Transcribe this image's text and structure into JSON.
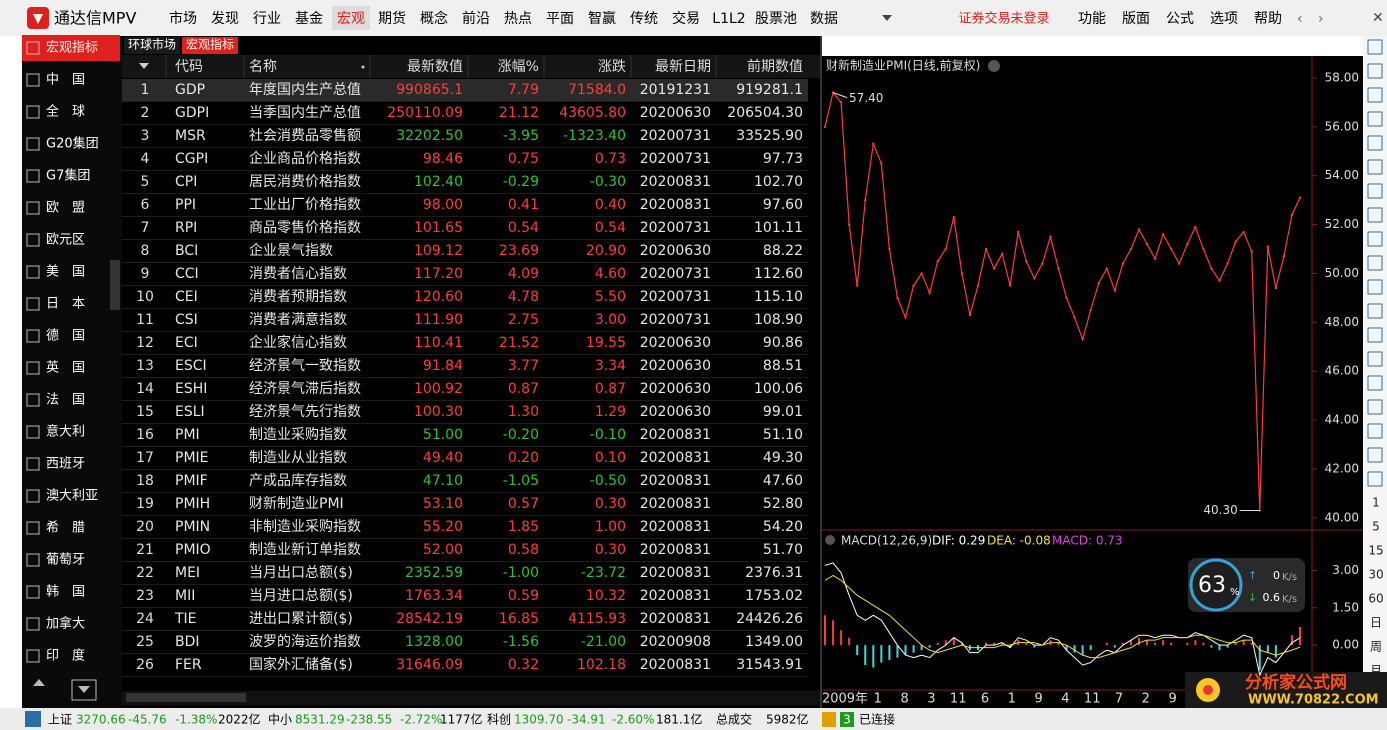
{
  "app": {
    "title": "通达信MPV",
    "menu": [
      "市场",
      "发现",
      "行业",
      "基金",
      "宏观",
      "期货",
      "概念",
      "前沿",
      "热点",
      "平面",
      "智赢",
      "传统",
      "交易",
      "L1L2",
      "股票池",
      "数据"
    ],
    "active_menu": 4,
    "login_status": "证券交易未登录",
    "right_menu": [
      "功能",
      "版面",
      "公式",
      "选项",
      "帮助"
    ]
  },
  "sidebar": {
    "items": [
      "宏观指标",
      "中　国",
      "全　球",
      "G20集团",
      "G7集团",
      "欧　盟",
      "欧元区",
      "美　国",
      "日　本",
      "德　国",
      "英　国",
      "法　国",
      "意大利",
      "西班牙",
      "澳大利亚",
      "希　腊",
      "葡萄牙",
      "韩　国",
      "加拿大",
      "印　度"
    ],
    "active": 0
  },
  "tabs": {
    "items": [
      "环球市场",
      "宏观指标"
    ],
    "active": 1
  },
  "table": {
    "columns": [
      "代码",
      "名称",
      "最新数值",
      "涨幅%",
      "涨跌",
      "最新日期",
      "前期数值"
    ],
    "selected": 0,
    "rows": [
      [
        "1",
        "GDP",
        "年度国内生产总值",
        "990865.1",
        "7.79",
        "71584.0",
        "20191231",
        "919281.1"
      ],
      [
        "2",
        "GDPI",
        "当季国内生产总值",
        "250110.09",
        "21.12",
        "43605.80",
        "20200630",
        "206504.30"
      ],
      [
        "3",
        "MSR",
        "社会消费品零售额",
        "32202.50",
        "-3.95",
        "-1323.40",
        "20200731",
        "33525.90"
      ],
      [
        "4",
        "CGPI",
        "企业商品价格指数",
        "98.46",
        "0.75",
        "0.73",
        "20200731",
        "97.73"
      ],
      [
        "5",
        "CPI",
        "居民消费价格指数",
        "102.40",
        "-0.29",
        "-0.30",
        "20200831",
        "102.70"
      ],
      [
        "6",
        "PPI",
        "工业出厂价格指数",
        "98.00",
        "0.41",
        "0.40",
        "20200831",
        "97.60"
      ],
      [
        "7",
        "RPI",
        "商品零售价格指数",
        "101.65",
        "0.54",
        "0.54",
        "20200731",
        "101.11"
      ],
      [
        "8",
        "BCI",
        "企业景气指数",
        "109.12",
        "23.69",
        "20.90",
        "20200630",
        "88.22"
      ],
      [
        "9",
        "CCI",
        "消费者信心指数",
        "117.20",
        "4.09",
        "4.60",
        "20200731",
        "112.60"
      ],
      [
        "10",
        "CEI",
        "消费者预期指数",
        "120.60",
        "4.78",
        "5.50",
        "20200731",
        "115.10"
      ],
      [
        "11",
        "CSI",
        "消费者满意指数",
        "111.90",
        "2.75",
        "3.00",
        "20200731",
        "108.90"
      ],
      [
        "12",
        "ECI",
        "企业家信心指数",
        "110.41",
        "21.52",
        "19.55",
        "20200630",
        "90.86"
      ],
      [
        "13",
        "ESCI",
        "经济景气一致指数",
        "91.84",
        "3.77",
        "3.34",
        "20200630",
        "88.51"
      ],
      [
        "14",
        "ESHI",
        "经济景气滞后指数",
        "100.92",
        "0.87",
        "0.87",
        "20200630",
        "100.06"
      ],
      [
        "15",
        "ESLI",
        "经济景气先行指数",
        "100.30",
        "1.30",
        "1.29",
        "20200630",
        "99.01"
      ],
      [
        "16",
        "PMI",
        "制造业采购指数",
        "51.00",
        "-0.20",
        "-0.10",
        "20200831",
        "51.10"
      ],
      [
        "17",
        "PMIE",
        "制造业从业指数",
        "49.40",
        "0.20",
        "0.10",
        "20200831",
        "49.30"
      ],
      [
        "18",
        "PMIF",
        "产成品库存指数",
        "47.10",
        "-1.05",
        "-0.50",
        "20200831",
        "47.60"
      ],
      [
        "19",
        "PMIH",
        "财新制造业PMI",
        "53.10",
        "0.57",
        "0.30",
        "20200831",
        "52.80"
      ],
      [
        "20",
        "PMIN",
        "非制造业采购指数",
        "55.20",
        "1.85",
        "1.00",
        "20200831",
        "54.20"
      ],
      [
        "21",
        "PMIO",
        "制造业新订单指数",
        "52.00",
        "0.58",
        "0.30",
        "20200831",
        "51.70"
      ],
      [
        "22",
        "MEI",
        "当月出口总额($)",
        "2352.59",
        "-1.00",
        "-23.72",
        "20200831",
        "2376.31"
      ],
      [
        "23",
        "MII",
        "当月进口总额($)",
        "1763.34",
        "0.59",
        "10.32",
        "20200831",
        "1753.02"
      ],
      [
        "24",
        "TIE",
        "进出口累计额($)",
        "28542.19",
        "16.85",
        "4115.93",
        "20200831",
        "24426.26"
      ],
      [
        "25",
        "BDI",
        "波罗的海运价指数",
        "1328.00",
        "-1.56",
        "-21.00",
        "20200908",
        "1349.00"
      ],
      [
        "26",
        "FER",
        "国家外汇储备($)",
        "31646.09",
        "0.32",
        "102.18",
        "20200831",
        "31543.91"
      ]
    ]
  },
  "chart_data": [
    {
      "type": "line",
      "title": "财新制造业PMI(日线,前复权)",
      "color": "#ff3b3b",
      "max_label": "57.40",
      "min_label": "40.30",
      "x_labels": [
        "2009年",
        "1",
        "8",
        "3",
        "11",
        "6",
        "1",
        "9",
        "4",
        "11",
        "7",
        "2",
        "9"
      ],
      "values": [
        56.0,
        57.4,
        57.0,
        52.0,
        49.5,
        53.0,
        55.3,
        54.5,
        51.0,
        49.0,
        48.2,
        49.5,
        50.0,
        49.2,
        50.5,
        51.0,
        52.3,
        50.0,
        48.3,
        49.5,
        51.0,
        50.2,
        50.8,
        49.5,
        51.7,
        50.5,
        49.8,
        50.4,
        51.5,
        50.2,
        49.0,
        48.2,
        47.3,
        48.5,
        49.6,
        50.2,
        49.3,
        50.4,
        51.0,
        51.8,
        51.2,
        50.6,
        51.6,
        51.0,
        50.4,
        51.2,
        51.9,
        51.0,
        50.2,
        49.7,
        50.4,
        51.3,
        51.7,
        50.9,
        40.3,
        51.1,
        49.4,
        50.7,
        52.4,
        53.1
      ],
      "ylim": [
        39.5,
        58.9
      ],
      "yticks": [
        {
          "value": 40,
          "label": "40.00"
        },
        {
          "value": 42,
          "label": "42.00"
        },
        {
          "value": 44,
          "label": "44.00"
        },
        {
          "value": 46,
          "label": "46.00"
        },
        {
          "value": 48,
          "label": "48.00"
        },
        {
          "value": 50,
          "label": "50.00"
        },
        {
          "value": 52,
          "label": "52.00"
        },
        {
          "value": 54,
          "label": "54.00"
        },
        {
          "value": 56,
          "label": "56.00"
        },
        {
          "value": 58,
          "label": "58.00"
        }
      ]
    },
    {
      "type": "macd",
      "title": "MACD(12,26,9)",
      "legend": [
        "DIF: 0.29",
        "DEA: -0.08",
        "MACD: 0.73"
      ],
      "ylim": [
        -1.8,
        3.9
      ],
      "yticks": [
        {
          "value": 0,
          "label": "0.00"
        },
        {
          "value": 1.5,
          "label": "1.50"
        },
        {
          "value": 3,
          "label": "3.00"
        }
      ],
      "series": [
        {
          "name": "DIF",
          "color": "#ffffff",
          "values": [
            3.2,
            3.3,
            2.9,
            2.0,
            1.2,
            1.0,
            1.2,
            1.0,
            0.5,
            0.0,
            -0.4,
            -0.5,
            -0.4,
            -0.5,
            -0.2,
            0.0,
            0.3,
            0.1,
            -0.3,
            -0.3,
            0.0,
            0.0,
            0.1,
            -0.1,
            0.3,
            0.2,
            0.0,
            0.0,
            0.3,
            0.2,
            -0.2,
            -0.5,
            -0.8,
            -0.7,
            -0.4,
            -0.2,
            -0.3,
            0.0,
            0.2,
            0.4,
            0.4,
            0.3,
            0.4,
            0.4,
            0.3,
            0.3,
            0.5,
            0.4,
            0.2,
            0.0,
            0.0,
            0.2,
            0.4,
            0.3,
            -1.2,
            -0.5,
            -0.7,
            -0.3,
            0.1,
            0.29
          ]
        },
        {
          "name": "DEA",
          "color": "#f0e030",
          "values": [
            2.6,
            2.8,
            2.6,
            2.3,
            2.0,
            1.8,
            1.6,
            1.4,
            1.2,
            0.9,
            0.6,
            0.3,
            0.0,
            -0.2,
            -0.3,
            -0.2,
            -0.1,
            0.0,
            -0.1,
            -0.1,
            -0.1,
            -0.1,
            0.0,
            0.0,
            0.1,
            0.1,
            0.1,
            0.0,
            0.1,
            0.1,
            0.0,
            -0.2,
            -0.4,
            -0.5,
            -0.5,
            -0.4,
            -0.3,
            -0.2,
            -0.1,
            0.1,
            0.2,
            0.2,
            0.3,
            0.3,
            0.3,
            0.3,
            0.4,
            0.4,
            0.3,
            0.2,
            0.1,
            0.1,
            0.2,
            0.2,
            -0.2,
            -0.3,
            -0.4,
            -0.3,
            -0.2,
            -0.08
          ]
        },
        {
          "name": "MACD",
          "color": "#e040e0",
          "values": [
            1.2,
            1.0,
            0.6,
            0.3,
            -0.4,
            -0.8,
            -0.9,
            -0.7,
            -0.6,
            -0.5,
            -0.4,
            -0.3,
            -0.2,
            -0.1,
            0.1,
            0.2,
            0.3,
            0.1,
            -0.2,
            -0.2,
            0.1,
            0.1,
            0.1,
            -0.1,
            0.2,
            0.1,
            -0.1,
            0.0,
            0.2,
            0.1,
            -0.2,
            -0.3,
            -0.4,
            -0.2,
            0.0,
            0.1,
            -0.1,
            0.1,
            0.2,
            0.3,
            0.2,
            0.1,
            0.2,
            0.1,
            0.0,
            0.1,
            0.2,
            0.1,
            -0.1,
            -0.2,
            -0.1,
            0.1,
            0.2,
            0.1,
            -1.0,
            -0.3,
            -0.5,
            0.0,
            0.4,
            0.73
          ]
        }
      ]
    }
  ],
  "speed": {
    "percent": "63",
    "unit": "%",
    "up": "0",
    "down": "0.6",
    "rate_unit": "K/s"
  },
  "period_bar": [
    "1",
    "5",
    "15",
    "30",
    "60",
    "日",
    "周",
    "月"
  ],
  "status_bar": {
    "items": [
      [
        "上证",
        "#000000"
      ],
      [
        "3270.66",
        "#1a9c1a"
      ],
      [
        "-45.76",
        "#1a9c1a"
      ],
      [
        "-1.38%",
        "#1a9c1a"
      ],
      [
        "2022亿",
        "#000000"
      ],
      [
        "中小",
        "#000000"
      ],
      [
        "8531.29",
        "#1a9c1a"
      ],
      [
        "-238.55",
        "#1a9c1a"
      ],
      [
        "-2.72%",
        "#1a9c1a"
      ],
      [
        "1177亿",
        "#000000"
      ],
      [
        "科创",
        "#000000"
      ],
      [
        "1309.70",
        "#1a9c1a"
      ],
      [
        "-34.91",
        "#1a9c1a"
      ],
      [
        "-2.60%",
        "#1a9c1a"
      ],
      [
        "181.1亿",
        "#000000"
      ],
      [
        "总成交",
        "#000000"
      ],
      [
        "5982亿",
        "#000000"
      ]
    ],
    "connections": "3",
    "connection_status": "已连接"
  },
  "watermark": {
    "name": "分析家公式网",
    "url": "WWW.70822.COM"
  }
}
